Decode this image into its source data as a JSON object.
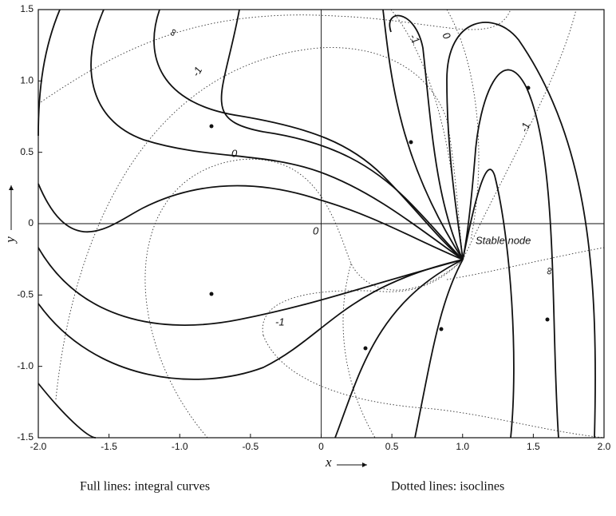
{
  "chart_data": {
    "type": "phase-portrait",
    "xlabel": "x",
    "ylabel": "y",
    "xlim": [
      -2.0,
      2.0
    ],
    "ylim": [
      -1.5,
      1.5
    ],
    "xticks": [
      {
        "value": -2.0,
        "label": "-2.0"
      },
      -1.5,
      {
        "value": -1.0,
        "label": "-1.0"
      },
      -0.5,
      0,
      0.5,
      {
        "value": 1.0,
        "label": "1.0"
      },
      1.5,
      {
        "value": 2.0,
        "label": "2.0"
      }
    ],
    "yticks": [
      1.5,
      {
        "value": 1.0,
        "label": "1.0"
      },
      0.5,
      0,
      -0.5,
      {
        "value": -1.0,
        "label": "-1.0"
      },
      -1.5
    ],
    "annotations": [
      "∞",
      "-1",
      "0",
      "0",
      "-1",
      "-1",
      "0",
      "-1",
      "∞",
      "Stable node"
    ],
    "captions": [
      "Full lines: integral curves",
      "Dotted lines: isoclines"
    ]
  }
}
